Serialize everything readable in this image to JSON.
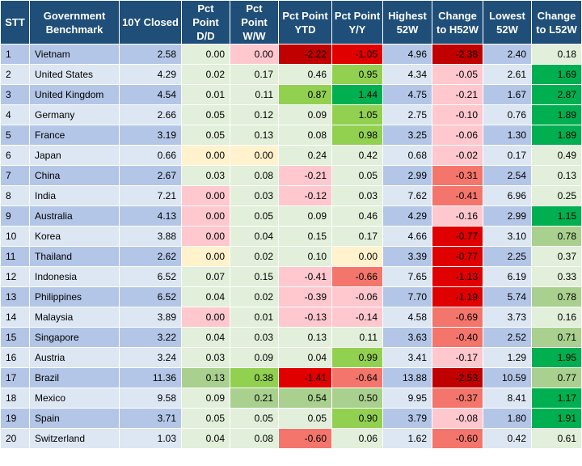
{
  "table": {
    "headers": [
      "STT",
      "Government Benchmark",
      "10Y Closed",
      "Pct Point D/D",
      "Pct Point W/W",
      "Pct Point YTD",
      "Pct Point Y/Y",
      "Highest 52W",
      "Change to H52W",
      "Lowest 52W",
      "Change to L52W"
    ],
    "rows": [
      {
        "stt": "1",
        "name": "Vietnam",
        "closed": "2.58",
        "dd": "0.00",
        "ww": "0.00",
        "ytd": "-2.22",
        "yy": "-1.05",
        "high": "4.96",
        "ch_high": "-2.38",
        "low": "2.40",
        "ch_low": "0.18"
      },
      {
        "stt": "2",
        "name": "United States",
        "closed": "4.29",
        "dd": "0.02",
        "ww": "0.17",
        "ytd": "0.46",
        "yy": "0.95",
        "high": "4.34",
        "ch_high": "-0.05",
        "low": "2.61",
        "ch_low": "1.69"
      },
      {
        "stt": "3",
        "name": "United Kingdom",
        "closed": "4.54",
        "dd": "0.01",
        "ww": "0.11",
        "ytd": "0.87",
        "yy": "1.44",
        "high": "4.75",
        "ch_high": "-0.21",
        "low": "1.67",
        "ch_low": "2.87"
      },
      {
        "stt": "4",
        "name": "Germany",
        "closed": "2.66",
        "dd": "0.05",
        "ww": "0.12",
        "ytd": "0.09",
        "yy": "1.05",
        "high": "2.75",
        "ch_high": "-0.10",
        "low": "0.76",
        "ch_low": "1.89"
      },
      {
        "stt": "5",
        "name": "France",
        "closed": "3.19",
        "dd": "0.05",
        "ww": "0.13",
        "ytd": "0.08",
        "yy": "0.98",
        "high": "3.25",
        "ch_high": "-0.06",
        "low": "1.30",
        "ch_low": "1.89"
      },
      {
        "stt": "6",
        "name": "Japan",
        "closed": "0.66",
        "dd": "0.00",
        "ww": "0.00",
        "ytd": "0.24",
        "yy": "0.42",
        "high": "0.68",
        "ch_high": "-0.02",
        "low": "0.17",
        "ch_low": "0.49"
      },
      {
        "stt": "7",
        "name": "China",
        "closed": "2.67",
        "dd": "0.03",
        "ww": "0.08",
        "ytd": "-0.21",
        "yy": "0.05",
        "high": "2.99",
        "ch_high": "-0.31",
        "low": "2.54",
        "ch_low": "0.13"
      },
      {
        "stt": "8",
        "name": "India",
        "closed": "7.21",
        "dd": "0.00",
        "ww": "0.03",
        "ytd": "-0.12",
        "yy": "0.03",
        "high": "7.62",
        "ch_high": "-0.41",
        "low": "6.96",
        "ch_low": "0.25"
      },
      {
        "stt": "9",
        "name": "Australia",
        "closed": "4.13",
        "dd": "0.00",
        "ww": "0.05",
        "ytd": "0.09",
        "yy": "0.46",
        "high": "4.29",
        "ch_high": "-0.16",
        "low": "2.99",
        "ch_low": "1.15"
      },
      {
        "stt": "10",
        "name": "Korea",
        "closed": "3.88",
        "dd": "0.00",
        "ww": "0.04",
        "ytd": "0.15",
        "yy": "0.17",
        "high": "4.66",
        "ch_high": "-0.77",
        "low": "3.10",
        "ch_low": "0.78"
      },
      {
        "stt": "11",
        "name": "Thailand",
        "closed": "2.62",
        "dd": "0.00",
        "ww": "0.02",
        "ytd": "0.10",
        "yy": "0.00",
        "high": "3.39",
        "ch_high": "-0.77",
        "low": "2.25",
        "ch_low": "0.37"
      },
      {
        "stt": "12",
        "name": "Indonesia",
        "closed": "6.52",
        "dd": "0.07",
        "ww": "0.15",
        "ytd": "-0.41",
        "yy": "-0.66",
        "high": "7.65",
        "ch_high": "-1.13",
        "low": "6.19",
        "ch_low": "0.33"
      },
      {
        "stt": "13",
        "name": "Philippines",
        "closed": "6.52",
        "dd": "0.04",
        "ww": "0.02",
        "ytd": "-0.39",
        "yy": "-0.06",
        "high": "7.70",
        "ch_high": "-1.19",
        "low": "5.74",
        "ch_low": "0.78"
      },
      {
        "stt": "14",
        "name": "Malaysia",
        "closed": "3.89",
        "dd": "0.00",
        "ww": "0.01",
        "ytd": "-0.13",
        "yy": "-0.14",
        "high": "4.58",
        "ch_high": "-0.69",
        "low": "3.73",
        "ch_low": "0.16"
      },
      {
        "stt": "15",
        "name": "Singapore",
        "closed": "3.22",
        "dd": "0.04",
        "ww": "0.03",
        "ytd": "0.13",
        "yy": "0.11",
        "high": "3.63",
        "ch_high": "-0.40",
        "low": "2.52",
        "ch_low": "0.71"
      },
      {
        "stt": "16",
        "name": "Austria",
        "closed": "3.24",
        "dd": "0.03",
        "ww": "0.09",
        "ytd": "0.04",
        "yy": "0.99",
        "high": "3.41",
        "ch_high": "-0.17",
        "low": "1.29",
        "ch_low": "1.95"
      },
      {
        "stt": "17",
        "name": "Brazil",
        "closed": "11.36",
        "dd": "0.13",
        "ww": "0.38",
        "ytd": "-1.41",
        "yy": "-0.64",
        "high": "13.88",
        "ch_high": "-2.53",
        "low": "10.59",
        "ch_low": "0.77"
      },
      {
        "stt": "18",
        "name": "Mexico",
        "closed": "9.58",
        "dd": "0.09",
        "ww": "0.21",
        "ytd": "0.54",
        "yy": "0.50",
        "high": "9.95",
        "ch_high": "-0.37",
        "low": "8.41",
        "ch_low": "1.17"
      },
      {
        "stt": "19",
        "name": "Spain",
        "closed": "3.71",
        "dd": "0.05",
        "ww": "0.05",
        "ytd": "0.05",
        "yy": "0.90",
        "high": "3.79",
        "ch_high": "-0.08",
        "low": "1.80",
        "ch_low": "1.91"
      },
      {
        "stt": "20",
        "name": "Switzerland",
        "closed": "1.03",
        "dd": "0.04",
        "ww": "0.08",
        "ytd": "-0.60",
        "yy": "0.06",
        "high": "1.62",
        "ch_high": "-0.60",
        "low": "0.42",
        "ch_low": "0.61"
      }
    ]
  },
  "colors": {
    "header_bg": "#1f4e79",
    "header_text": "#ffffff",
    "row_odd": "#b4c6e7",
    "row_even": "#dde7f3",
    "neutral_green": "#e2efda",
    "zero_yellow": "#fff2cc",
    "light_red": "#ffc7ce",
    "mid_red": "#f4756b",
    "strong_red": "#e00000",
    "dark_red": "#c00000",
    "light_green": "#a9d08e",
    "mid_green": "#92d050",
    "strong_green": "#00b050"
  }
}
